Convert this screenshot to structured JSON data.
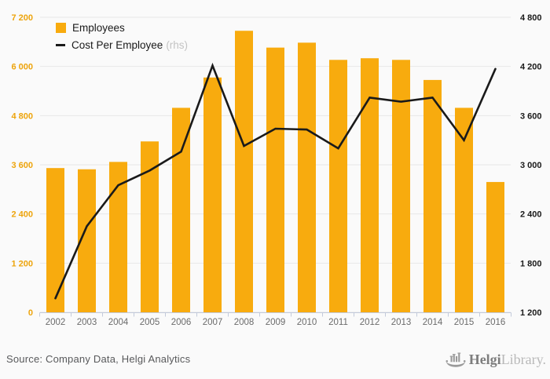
{
  "chart_data": {
    "type": "combo",
    "categories": [
      "2002",
      "2003",
      "2004",
      "2005",
      "2006",
      "2007",
      "2008",
      "2009",
      "2010",
      "2011",
      "2012",
      "2013",
      "2014",
      "2015",
      "2016"
    ],
    "series": [
      {
        "name": "Employees",
        "type": "bar",
        "axis": "left",
        "color": "#F8AB0E",
        "values": [
          3520,
          3490,
          3670,
          4170,
          4990,
          5730,
          6870,
          6460,
          6580,
          6160,
          6200,
          6160,
          5670,
          4990,
          3180
        ]
      },
      {
        "name": "Cost Per Employee",
        "type": "line",
        "axis": "right",
        "color": "#1A1A1A",
        "values": [
          1370,
          2250,
          2750,
          2930,
          3160,
          4210,
          3230,
          3440,
          3430,
          3200,
          3820,
          3770,
          3820,
          3300,
          4170
        ]
      }
    ],
    "left_axis": {
      "min": 0,
      "max": 7200,
      "tick_labels_top_to_bottom": [
        "7 200",
        "6 000",
        "4 800",
        "3 600",
        "2 400",
        "1 200",
        "0"
      ],
      "label_color": "#EDA40C"
    },
    "right_axis": {
      "min": 1200,
      "max": 4800,
      "tick_labels_top_to_bottom": [
        "4 800",
        "4 200",
        "3 600",
        "3 000",
        "2 400",
        "1 800",
        "1 200"
      ],
      "label_color": "#1A1A1A"
    },
    "grid": true,
    "gridline_color": "#e7e7e7",
    "x_axis_color": "#c3cadb",
    "year_label_color": "#6b6b6b",
    "legend_position": "top-left"
  },
  "legend": {
    "employees_label": "Employees",
    "cost_label": "Cost Per Employee",
    "cost_suffix": "(rhs)"
  },
  "footer": {
    "source": "Source: Company Data, Helgi Analytics"
  },
  "logo": {
    "name_bold": "Helgi",
    "name_light": "Library."
  },
  "colors": {
    "bar": "#F8AB0E",
    "line": "#1A1A1A",
    "background": "#fafafa"
  }
}
